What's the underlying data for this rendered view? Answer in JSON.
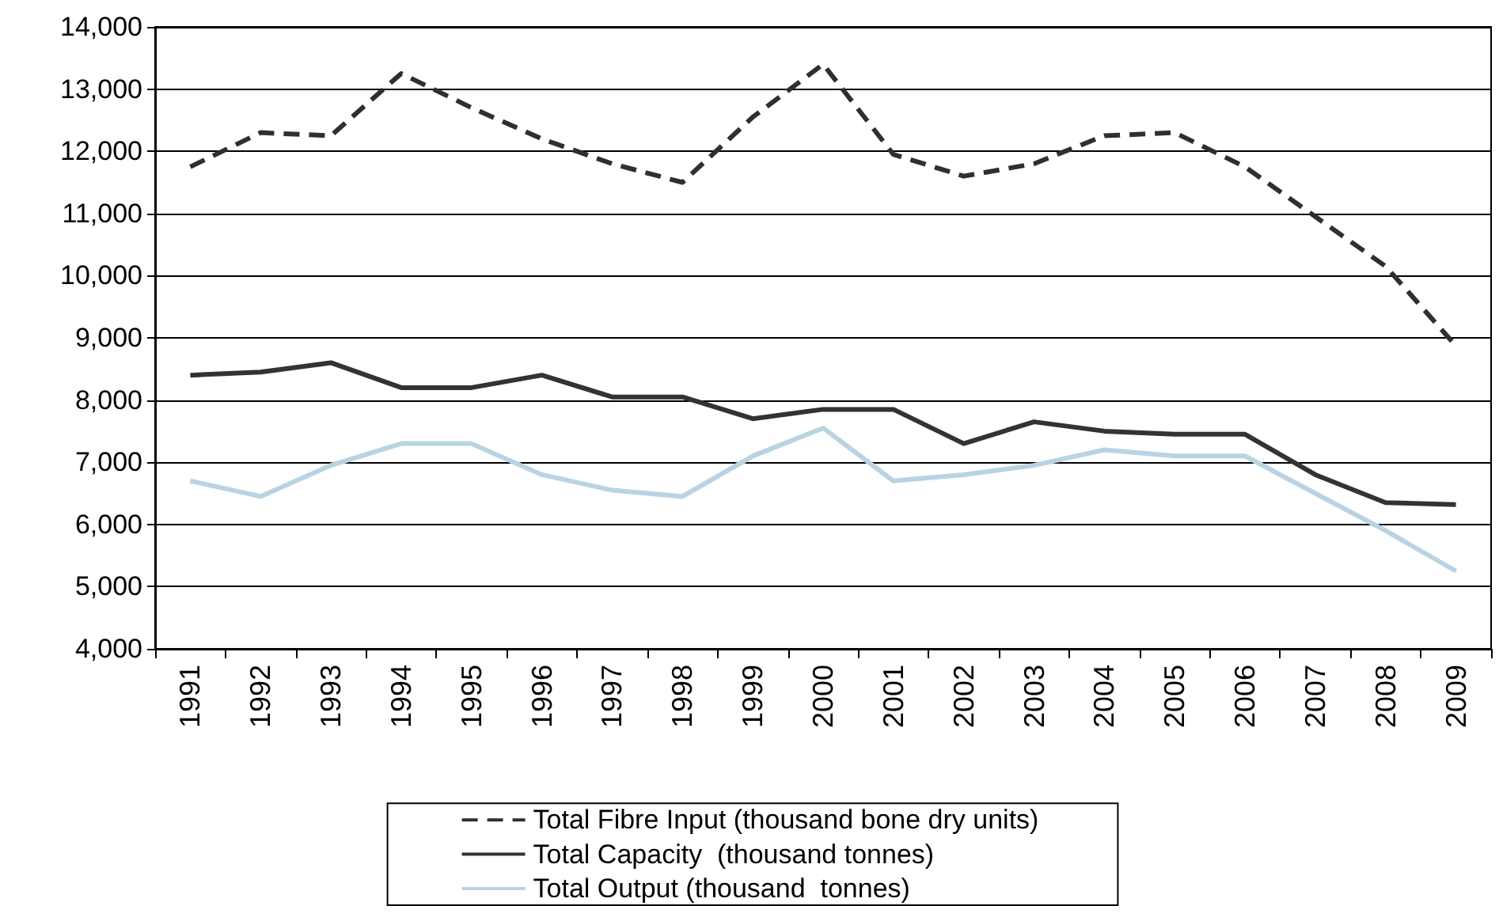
{
  "chart_data": {
    "type": "line",
    "categories": [
      "1991",
      "1992",
      "1993",
      "1994",
      "1995",
      "1996",
      "1997",
      "1998",
      "1999",
      "2000",
      "2001",
      "2002",
      "2003",
      "2004",
      "2005",
      "2006",
      "2007",
      "2008",
      "2009"
    ],
    "series": [
      {
        "name": "Total Fibre Input (thousand bone dry units)",
        "color": "#2f2f2f",
        "line_style": "dashed",
        "values": [
          11750,
          12300,
          12250,
          13250,
          12700,
          12200,
          11800,
          11500,
          12550,
          13400,
          11950,
          11600,
          11800,
          12250,
          12300,
          11750,
          10950,
          10150,
          8870
        ]
      },
      {
        "name": "Total Capacity  (thousand tonnes)",
        "color": "#333333",
        "line_style": "solid",
        "values": [
          8400,
          8450,
          8600,
          8200,
          8200,
          8400,
          8050,
          8050,
          7700,
          7850,
          7850,
          7300,
          7650,
          7500,
          7450,
          7450,
          6800,
          6350,
          6320
        ]
      },
      {
        "name": "Total Output (thousand  tonnes)",
        "color": "#b9d3e2",
        "line_style": "solid",
        "values": [
          6700,
          6450,
          6950,
          7300,
          7300,
          6800,
          6550,
          6450,
          7100,
          7550,
          6700,
          6800,
          6950,
          7200,
          7100,
          7100,
          6500,
          5900,
          5250
        ]
      }
    ],
    "ylim": [
      4000,
      14000
    ],
    "yticks": [
      {
        "value": 4000,
        "label": "4,000"
      },
      {
        "value": 5000,
        "label": "5,000"
      },
      {
        "value": 6000,
        "label": "6,000"
      },
      {
        "value": 7000,
        "label": "7,000"
      },
      {
        "value": 8000,
        "label": "8,000"
      },
      {
        "value": 9000,
        "label": "9,000"
      },
      {
        "value": 10000,
        "label": "10,000"
      },
      {
        "value": 11000,
        "label": "11,000"
      },
      {
        "value": 12000,
        "label": "12,000"
      },
      {
        "value": 13000,
        "label": "13,000"
      },
      {
        "value": 14000,
        "label": "14,000"
      }
    ],
    "grid": "y",
    "legend": "bottom",
    "marker": "none"
  }
}
